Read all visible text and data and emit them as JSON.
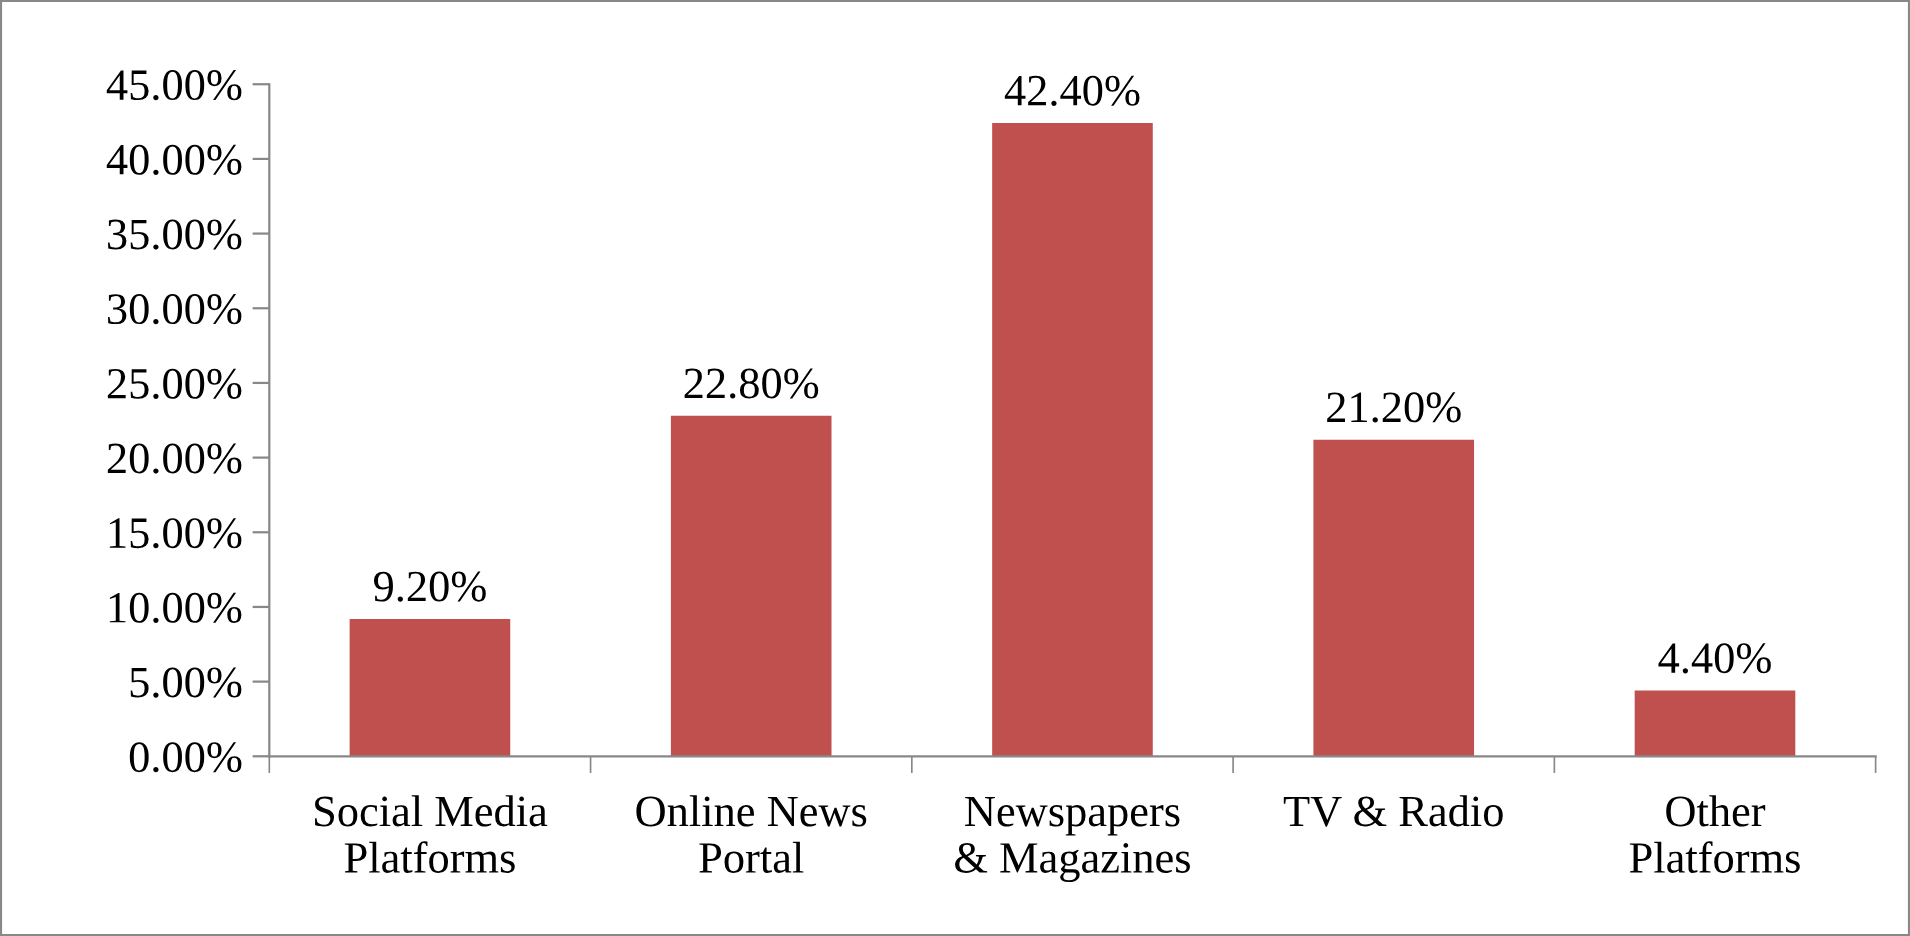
{
  "chart_data": {
    "type": "bar",
    "categories": [
      "Social Media\nPlatforms",
      "Online News\nPortal",
      "Newspapers\n& Magazines",
      "TV & Radio",
      "Other\nPlatforms"
    ],
    "values": [
      9.2,
      22.8,
      42.4,
      21.2,
      4.4
    ],
    "value_labels": [
      "9.20%",
      "22.80%",
      "42.40%",
      "21.20%",
      "4.40%"
    ],
    "color": "#c0504d",
    "ylim": [
      0,
      45
    ],
    "yticks": [
      {
        "value": 0,
        "label": "0.00%"
      },
      {
        "value": 5,
        "label": "5.00%"
      },
      {
        "value": 10,
        "label": "10.00%"
      },
      {
        "value": 15,
        "label": "15.00%"
      },
      {
        "value": 20,
        "label": "20.00%"
      },
      {
        "value": 25,
        "label": "25.00%"
      },
      {
        "value": 30,
        "label": "30.00%"
      },
      {
        "value": 35,
        "label": "35.00%"
      },
      {
        "value": 40,
        "label": "40.00%"
      },
      {
        "value": 45,
        "label": "45.00%"
      }
    ],
    "grid": false,
    "legend": false
  }
}
